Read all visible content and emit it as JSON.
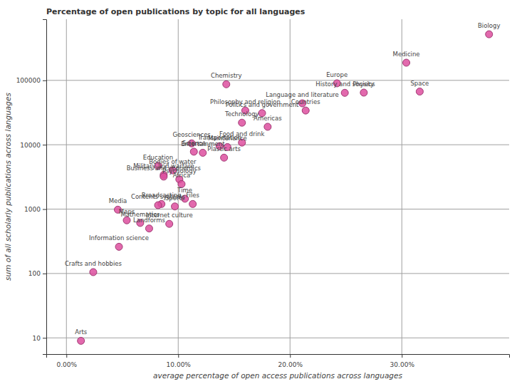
{
  "chart_data": {
    "type": "scatter",
    "title": "Percentage of open publications by topic for all languages",
    "x_label": "average percentage of open access publications across languages",
    "y_label": "sum of all scholarly publications across languages",
    "point_labels": [
      "Biology",
      "Medicine",
      "Space",
      "Physics",
      "History and society",
      "Europe",
      "Language and literature",
      "Countries",
      "Chemistry",
      "Philosophy and religion",
      "Politics and government",
      "Technology",
      "Americas",
      "Food and drink",
      "Geosciences",
      "Transportation",
      "Maintenance",
      "Science",
      "Entertainment",
      "Plastic arts",
      "Education",
      "Bodies of water",
      "Military and warfare",
      "Business and economics",
      "Psychology",
      "Africa",
      "Broadcasting",
      "Contents systems",
      "Sports",
      "Time",
      "Files",
      "Media",
      "Maps",
      "Mathematics",
      "Landforms",
      "Internet culture",
      "Information science",
      "Crafts and hobbies",
      "Arts"
    ],
    "x": [
      37.8,
      30.4,
      31.6,
      26.6,
      24.9,
      24.2,
      21.1,
      21.4,
      14.3,
      16.0,
      17.5,
      15.7,
      18.0,
      15.7,
      11.2,
      13.7,
      14.4,
      11.4,
      12.2,
      14.1,
      8.2,
      9.5,
      8.7,
      8.7,
      10.1,
      10.3,
      8.5,
      8.2,
      9.7,
      10.6,
      11.3,
      4.6,
      5.4,
      6.6,
      7.4,
      9.2,
      4.7,
      2.4,
      1.3
    ],
    "values": [
      520000,
      188000,
      67000,
      64500,
      64000,
      90000,
      44000,
      34000,
      87000,
      34000,
      31000,
      22000,
      19000,
      10800,
      10500,
      9500,
      9200,
      7800,
      7500,
      6300,
      4700,
      4000,
      3400,
      3200,
      2900,
      2450,
      1200,
      1150,
      1100,
      1450,
      1200,
      980,
      670,
      610,
      500,
      590,
      260,
      105,
      9
    ],
    "color": "#dd4f9f",
    "marker": "circle",
    "log": "y",
    "grid": true,
    "xlim": [
      -1.8,
      39.6
    ],
    "ylim": [
      5.6,
      890000
    ],
    "xticks": [
      {
        "value": 0,
        "label": "0.00%"
      },
      {
        "value": 10,
        "label": "10.00%"
      },
      {
        "value": 20,
        "label": "20.00%"
      },
      {
        "value": 30,
        "label": "30.00%"
      }
    ],
    "yticks": [
      10,
      100,
      1000,
      10000,
      100000
    ]
  }
}
